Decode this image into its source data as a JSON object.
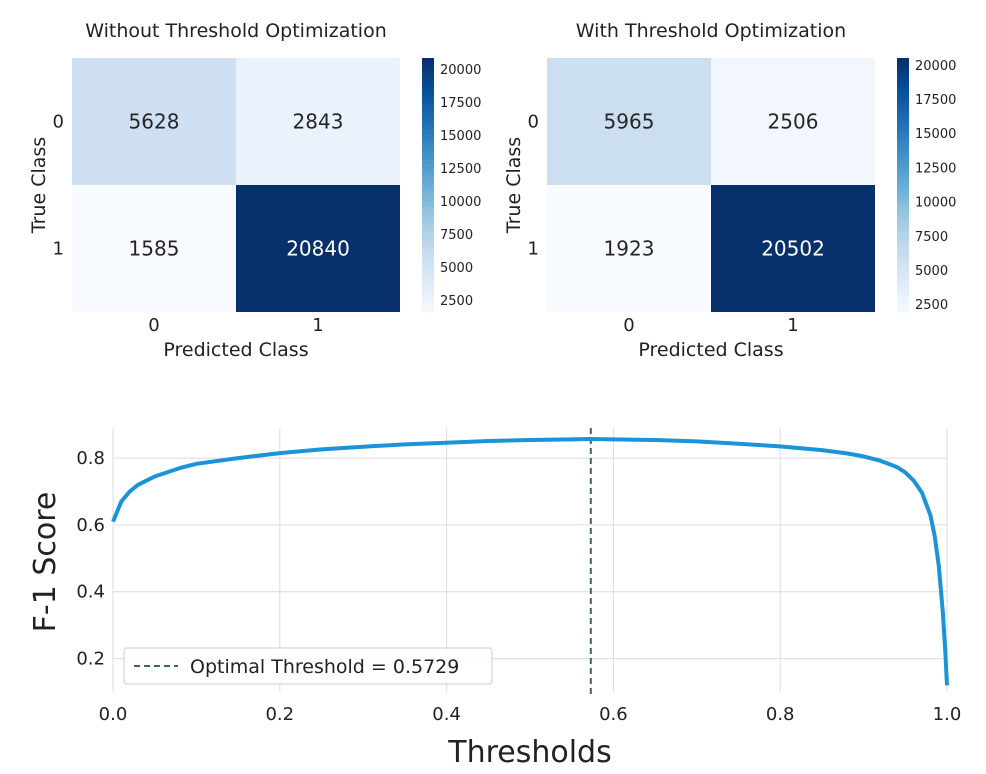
{
  "chart_data": [
    {
      "type": "heatmap",
      "title": "Without Threshold Optimization",
      "xlabel": "Predicted Class",
      "ylabel": "True Class",
      "x_categories": [
        "0",
        "1"
      ],
      "y_categories": [
        "0",
        "1"
      ],
      "values": [
        [
          5628,
          2843
        ],
        [
          1585,
          20840
        ]
      ],
      "colormap": "Blues",
      "colorbar": {
        "ticks": [
          "20000",
          "17500",
          "15000",
          "12500",
          "10000",
          "7500",
          "5000",
          "2500"
        ],
        "min": 1585,
        "max": 20840
      }
    },
    {
      "type": "heatmap",
      "title": "With Threshold Optimization",
      "xlabel": "Predicted Class",
      "ylabel": "True Class",
      "x_categories": [
        "0",
        "1"
      ],
      "y_categories": [
        "0",
        "1"
      ],
      "values": [
        [
          5965,
          2506
        ],
        [
          1923,
          20502
        ]
      ],
      "colormap": "Blues",
      "colorbar": {
        "ticks": [
          "20000",
          "17500",
          "15000",
          "12500",
          "10000",
          "7500",
          "5000",
          "2500"
        ],
        "min": 1923,
        "max": 20502
      }
    },
    {
      "type": "line",
      "xlabel": "Thresholds",
      "ylabel": "F-1 Score",
      "xlim": [
        0.0,
        1.0
      ],
      "ylim": [
        0.1,
        0.89
      ],
      "x_ticks": [
        "0.0",
        "0.2",
        "0.4",
        "0.6",
        "0.8",
        "1.0"
      ],
      "y_ticks": [
        "0.2",
        "0.4",
        "0.6",
        "0.8"
      ],
      "grid": true,
      "line_color": "#1a93d8",
      "series": [
        {
          "x": [
            0.0,
            0.005,
            0.01,
            0.02,
            0.03,
            0.05,
            0.08,
            0.1,
            0.15,
            0.2,
            0.25,
            0.3,
            0.35,
            0.4,
            0.45,
            0.5,
            0.55,
            0.5729,
            0.6,
            0.65,
            0.7,
            0.75,
            0.8,
            0.85,
            0.88,
            0.9,
            0.92,
            0.94,
            0.95,
            0.96,
            0.97,
            0.98,
            0.985,
            0.99,
            0.995,
            0.998,
            1.0
          ],
          "y": [
            0.61,
            0.64,
            0.67,
            0.7,
            0.72,
            0.745,
            0.77,
            0.783,
            0.8,
            0.815,
            0.826,
            0.834,
            0.841,
            0.846,
            0.851,
            0.854,
            0.856,
            0.857,
            0.856,
            0.854,
            0.85,
            0.843,
            0.835,
            0.824,
            0.814,
            0.805,
            0.792,
            0.773,
            0.757,
            0.733,
            0.696,
            0.63,
            0.57,
            0.48,
            0.34,
            0.22,
            0.12
          ]
        }
      ],
      "vline": {
        "x": 0.5729,
        "color": "#3c6470",
        "style": "dashed"
      },
      "legend": {
        "position": "bottom-left",
        "label": "Optimal Threshold = 0.5729"
      }
    }
  ]
}
